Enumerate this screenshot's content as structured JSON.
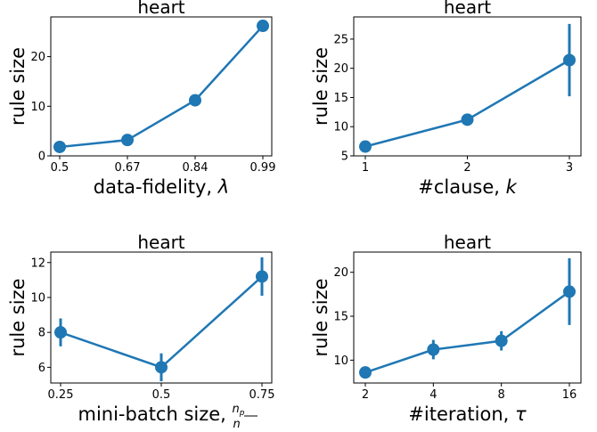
{
  "figure": {
    "colors": {
      "series": "#1f77b4",
      "axis": "#000000",
      "background": "#ffffff"
    },
    "marker": "circle",
    "grid": false
  },
  "chart_data": [
    {
      "type": "line",
      "title": "heart",
      "xlabel": "data-fidelity, λ",
      "ylabel": "rule size",
      "x_scale": "categorical",
      "categories": [
        "0.5",
        "0.67",
        "0.84",
        "0.99"
      ],
      "series": [
        {
          "values": [
            1.8,
            3.2,
            11.2,
            26.2
          ],
          "error": [
            0.3,
            0.4,
            0.6,
            0.6
          ]
        }
      ],
      "ylim": [
        0,
        28
      ],
      "yticks": [
        0,
        10,
        20
      ]
    },
    {
      "type": "line",
      "title": "heart",
      "xlabel": "#clause, k",
      "ylabel": "rule size",
      "x_scale": "categorical",
      "categories": [
        "1",
        "2",
        "3"
      ],
      "series": [
        {
          "values": [
            6.6,
            11.2,
            21.4
          ],
          "error": [
            0.4,
            0.5,
            6.2
          ]
        }
      ],
      "ylim": [
        5,
        28.8
      ],
      "yticks": [
        5,
        10,
        15,
        20,
        25
      ]
    },
    {
      "type": "line",
      "title": "heart",
      "xlabel": "mini-batch size, n_p/n",
      "ylabel": "rule size",
      "x_scale": "categorical",
      "categories": [
        "0.25",
        "0.5",
        "0.75"
      ],
      "series": [
        {
          "values": [
            8.0,
            6.0,
            11.2
          ],
          "error": [
            0.8,
            0.8,
            1.1
          ]
        }
      ],
      "ylim": [
        5.1,
        12.6
      ],
      "yticks": [
        6,
        8,
        10,
        12
      ]
    },
    {
      "type": "line",
      "title": "heart",
      "xlabel": "#iteration, τ",
      "ylabel": "rule size",
      "x_scale": "categorical",
      "categories": [
        "2",
        "4",
        "8",
        "16"
      ],
      "series": [
        {
          "values": [
            8.6,
            11.2,
            12.2,
            17.8
          ],
          "error": [
            0.6,
            1.1,
            1.1,
            3.8
          ]
        }
      ],
      "ylim": [
        7.4,
        22.3
      ],
      "yticks": [
        10,
        15,
        20
      ]
    }
  ]
}
